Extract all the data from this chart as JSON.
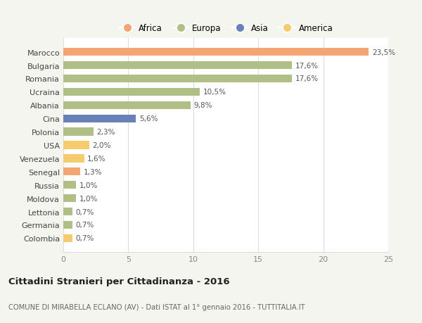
{
  "categories": [
    "Marocco",
    "Bulgaria",
    "Romania",
    "Ucraina",
    "Albania",
    "Cina",
    "Polonia",
    "USA",
    "Venezuela",
    "Senegal",
    "Russia",
    "Moldova",
    "Lettonia",
    "Germania",
    "Colombia"
  ],
  "values": [
    23.5,
    17.6,
    17.6,
    10.5,
    9.8,
    5.6,
    2.3,
    2.0,
    1.6,
    1.3,
    1.0,
    1.0,
    0.7,
    0.7,
    0.7
  ],
  "labels": [
    "23,5%",
    "17,6%",
    "17,6%",
    "10,5%",
    "9,8%",
    "5,6%",
    "2,3%",
    "2,0%",
    "1,6%",
    "1,3%",
    "1,0%",
    "1,0%",
    "0,7%",
    "0,7%",
    "0,7%"
  ],
  "colors": [
    "#F4A574",
    "#AFBF85",
    "#AFBF85",
    "#AFBF85",
    "#AFBF85",
    "#6882B8",
    "#AFBF85",
    "#F5CB6E",
    "#F5CB6E",
    "#F4A574",
    "#AFBF85",
    "#AFBF85",
    "#AFBF85",
    "#AFBF85",
    "#F5CB6E"
  ],
  "legend_labels": [
    "Africa",
    "Europa",
    "Asia",
    "America"
  ],
  "legend_colors": [
    "#F4A574",
    "#AFBF85",
    "#6882B8",
    "#F5CB6E"
  ],
  "title": "Cittadini Stranieri per Cittadinanza - 2016",
  "subtitle": "COMUNE DI MIRABELLA ECLANO (AV) - Dati ISTAT al 1° gennaio 2016 - TUTTITALIA.IT",
  "xlim": [
    0,
    25
  ],
  "xticks": [
    0,
    5,
    10,
    15,
    20,
    25
  ],
  "background_color": "#f5f5f0",
  "bar_background": "#ffffff",
  "grid_color": "#dddddd"
}
